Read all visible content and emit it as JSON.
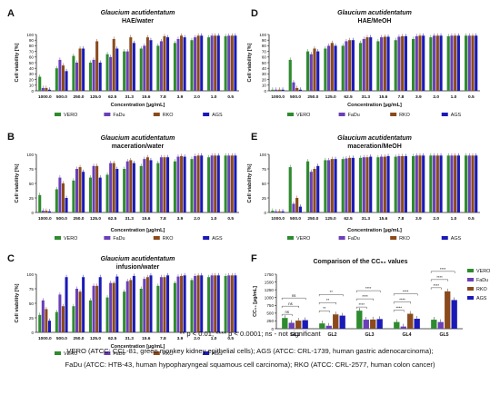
{
  "series_colors": {
    "VERO": "#2e8b2e",
    "FaDu": "#6a3fb8",
    "RKO": "#8b4a1c",
    "AGS": "#1a1ab8"
  },
  "chart_data": [
    {
      "panel": "A",
      "type": "bar",
      "title": "Glaucium acutidentatum",
      "subtitle": "HAE/water",
      "xlabel": "Concentration [µg/mL]",
      "ylabel": "Cell viability [%]",
      "ylim": [
        0,
        100
      ],
      "yticks": [
        0,
        10,
        20,
        30,
        40,
        50,
        60,
        70,
        80,
        90,
        100
      ],
      "categories": [
        "1000.0",
        "500.0",
        "250.0",
        "125.0",
        "62.5",
        "31.3",
        "15.6",
        "7.8",
        "3.9",
        "2.0",
        "1.0",
        "0.5"
      ],
      "series": [
        {
          "name": "VERO",
          "values": [
            25,
            40,
            62,
            50,
            65,
            70,
            75,
            80,
            85,
            90,
            95,
            97
          ]
        },
        {
          "name": "FaDu",
          "values": [
            5,
            55,
            50,
            55,
            60,
            70,
            80,
            88,
            92,
            95,
            98,
            98
          ]
        },
        {
          "name": "RKO",
          "values": [
            5,
            45,
            75,
            88,
            92,
            95,
            95,
            97,
            98,
            98,
            98,
            98
          ]
        },
        {
          "name": "AGS",
          "values": [
            2,
            35,
            75,
            50,
            75,
            85,
            90,
            95,
            95,
            98,
            98,
            98
          ]
        }
      ],
      "legend": "bottom"
    },
    {
      "panel": "B",
      "type": "bar",
      "title": "Glaucium acutidentatum",
      "subtitle": "maceration/water",
      "xlabel": "Concentration [µg/mL]",
      "ylabel": "Cell viability [%]",
      "ylim": [
        0,
        100
      ],
      "yticks": [
        0,
        25,
        50,
        75,
        100
      ],
      "categories": [
        "1000.0",
        "500.0",
        "250.0",
        "125.0",
        "62.5",
        "31.3",
        "15.6",
        "7.8",
        "3.9",
        "2.0",
        "1.0",
        "0.5"
      ],
      "series": [
        {
          "name": "VERO",
          "values": [
            30,
            40,
            55,
            60,
            65,
            75,
            80,
            85,
            88,
            92,
            95,
            98
          ]
        },
        {
          "name": "FaDu",
          "values": [
            3,
            60,
            75,
            80,
            85,
            88,
            92,
            95,
            96,
            97,
            98,
            98
          ]
        },
        {
          "name": "RKO",
          "values": [
            3,
            50,
            78,
            80,
            85,
            90,
            95,
            95,
            97,
            98,
            98,
            98
          ]
        },
        {
          "name": "AGS",
          "values": [
            2,
            25,
            70,
            60,
            75,
            85,
            90,
            95,
            96,
            98,
            98,
            98
          ]
        }
      ],
      "legend": "bottom"
    },
    {
      "panel": "C",
      "type": "bar",
      "title": "Glaucium acutidentatum",
      "subtitle": "infusion/water",
      "xlabel": "Concentration [µg/mL]",
      "ylabel": "Cell viability [%]",
      "ylim": [
        0,
        100
      ],
      "yticks": [
        0,
        25,
        50,
        75,
        100
      ],
      "categories": [
        "1000.0",
        "500.0",
        "250.0",
        "125.0",
        "62.5",
        "31.3",
        "15.6",
        "7.8",
        "3.9",
        "2.0",
        "1.0",
        "0.5"
      ],
      "series": [
        {
          "name": "VERO",
          "values": [
            30,
            35,
            45,
            55,
            60,
            70,
            75,
            80,
            85,
            90,
            95,
            97
          ]
        },
        {
          "name": "FaDu",
          "values": [
            55,
            65,
            75,
            80,
            85,
            88,
            92,
            95,
            96,
            97,
            98,
            98
          ]
        },
        {
          "name": "RKO",
          "values": [
            40,
            45,
            70,
            80,
            85,
            90,
            95,
            95,
            97,
            98,
            98,
            98
          ]
        },
        {
          "name": "AGS",
          "values": [
            20,
            95,
            95,
            95,
            96,
            97,
            98,
            98,
            98,
            98,
            98,
            98
          ]
        }
      ],
      "legend": "bottom"
    },
    {
      "panel": "D",
      "type": "bar",
      "title": "Glaucium acutidentatum",
      "subtitle": "HAE/MeOH",
      "xlabel": "Concentration [µg/mL]",
      "ylabel": "Cell viability [%]",
      "ylim": [
        0,
        100
      ],
      "yticks": [
        0,
        10,
        20,
        30,
        40,
        50,
        60,
        70,
        80,
        90,
        100
      ],
      "categories": [
        "1000.0",
        "500.0",
        "250.0",
        "125.0",
        "62.5",
        "31.3",
        "15.6",
        "7.8",
        "3.9",
        "2.0",
        "1.0",
        "0.5"
      ],
      "series": [
        {
          "name": "VERO",
          "values": [
            2,
            55,
            70,
            75,
            80,
            85,
            88,
            90,
            92,
            95,
            97,
            98
          ]
        },
        {
          "name": "FaDu",
          "values": [
            2,
            15,
            65,
            80,
            88,
            92,
            95,
            96,
            97,
            98,
            98,
            98
          ]
        },
        {
          "name": "RKO",
          "values": [
            2,
            5,
            75,
            85,
            90,
            95,
            96,
            97,
            98,
            98,
            98,
            98
          ]
        },
        {
          "name": "AGS",
          "values": [
            2,
            2,
            70,
            80,
            90,
            95,
            96,
            97,
            98,
            98,
            98,
            98
          ]
        }
      ],
      "legend": "bottom"
    },
    {
      "panel": "E",
      "type": "bar",
      "title": "Glaucium acutidentatum",
      "subtitle": "maceration/MeOH",
      "xlabel": "Concentration [µg/mL]",
      "ylabel": "Cell viability [%]",
      "ylim": [
        0,
        100
      ],
      "yticks": [
        0,
        25,
        50,
        75,
        100
      ],
      "categories": [
        "1000.0",
        "500.0",
        "250.0",
        "125.0",
        "62.5",
        "31.3",
        "15.6",
        "7.8",
        "3.9",
        "2.0",
        "1.0",
        "0.5"
      ],
      "series": [
        {
          "name": "VERO",
          "values": [
            3,
            78,
            88,
            90,
            92,
            94,
            95,
            96,
            97,
            98,
            98,
            98
          ]
        },
        {
          "name": "FaDu",
          "values": [
            2,
            15,
            70,
            90,
            93,
            95,
            96,
            97,
            98,
            98,
            98,
            98
          ]
        },
        {
          "name": "RKO",
          "values": [
            2,
            25,
            75,
            92,
            94,
            95,
            96,
            97,
            98,
            98,
            98,
            98
          ]
        },
        {
          "name": "AGS",
          "values": [
            2,
            10,
            80,
            92,
            94,
            96,
            97,
            97,
            98,
            98,
            98,
            98
          ]
        }
      ],
      "legend": "bottom"
    },
    {
      "panel": "F",
      "type": "bar",
      "title": "Comparison of the CC₅₀ values",
      "xlabel": "",
      "ylabel": "CC₅₀ [µg/mL]",
      "ylim": [
        0,
        1750
      ],
      "yticks": [
        0,
        250,
        500,
        750,
        1000,
        1250,
        1500,
        1750
      ],
      "categories": [
        "GL1",
        "GL2",
        "GL3",
        "GL4",
        "GL5"
      ],
      "series": [
        {
          "name": "VERO",
          "values": [
            345,
            170,
            580,
            215,
            290
          ]
        },
        {
          "name": "FaDu",
          "values": [
            190,
            95,
            290,
            70,
            215
          ]
        },
        {
          "name": "RKO",
          "values": [
            260,
            460,
            295,
            480,
            1200
          ]
        },
        {
          "name": "AGS",
          "values": [
            275,
            420,
            310,
            320,
            920
          ]
        }
      ],
      "significance": [
        "ns",
        "**",
        "****",
        "****",
        "****"
      ],
      "legend": "right"
    }
  ],
  "footnote": "** p < 0.01; **** p < 0.0001; ns - not significant",
  "caption_line1": "VERO (ATCC: CCL-81, green monkey kidney epithelial cells); AGS (ATCC: CRL-1739, human gastric adenocarcinoma);",
  "caption_line2": "FaDu (ATCC: HTB-43, human hypopharyngeal squamous cell carcinoma); RKO (ATCC: CRL-2577, human colon cancer)"
}
